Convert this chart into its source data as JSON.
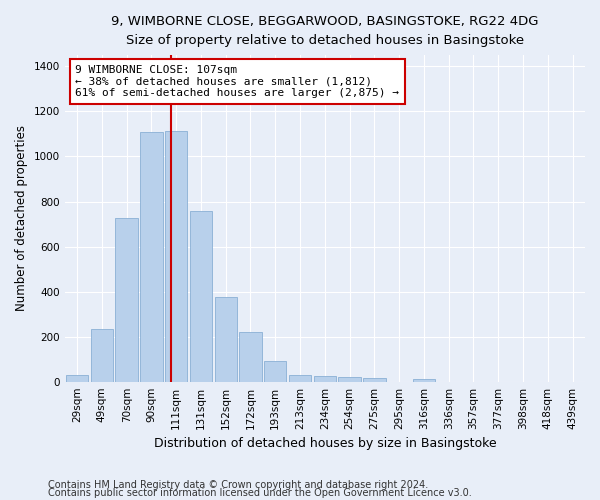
{
  "title_line1": "9, WIMBORNE CLOSE, BEGGARWOOD, BASINGSTOKE, RG22 4DG",
  "title_line2": "Size of property relative to detached houses in Basingstoke",
  "xlabel": "Distribution of detached houses by size in Basingstoke",
  "ylabel": "Number of detached properties",
  "bar_labels": [
    "29sqm",
    "49sqm",
    "70sqm",
    "90sqm",
    "111sqm",
    "131sqm",
    "152sqm",
    "172sqm",
    "193sqm",
    "213sqm",
    "234sqm",
    "254sqm",
    "275sqm",
    "295sqm",
    "316sqm",
    "336sqm",
    "357sqm",
    "377sqm",
    "398sqm",
    "418sqm",
    "439sqm"
  ],
  "bar_values": [
    30,
    235,
    725,
    1110,
    1115,
    760,
    375,
    220,
    90,
    30,
    25,
    22,
    16,
    0,
    13,
    0,
    0,
    0,
    0,
    0,
    0
  ],
  "bar_color": "#b8d0eb",
  "bar_edge_color": "#8ab0d5",
  "background_color": "#e8eef8",
  "grid_color": "#ffffff",
  "vline_x": 3.78,
  "annotation_text": "9 WIMBORNE CLOSE: 107sqm\n← 38% of detached houses are smaller (1,812)\n61% of semi-detached houses are larger (2,875) →",
  "annotation_box_color": "#ffffff",
  "annotation_box_edge": "#cc0000",
  "vline_color": "#cc0000",
  "ylim": [
    0,
    1450
  ],
  "yticks": [
    0,
    200,
    400,
    600,
    800,
    1000,
    1200,
    1400
  ],
  "footnote1": "Contains HM Land Registry data © Crown copyright and database right 2024.",
  "footnote2": "Contains public sector information licensed under the Open Government Licence v3.0.",
  "title_fontsize": 9.5,
  "subtitle_fontsize": 9,
  "axis_label_fontsize": 8.5,
  "tick_fontsize": 7.5,
  "annotation_fontsize": 8,
  "footnote_fontsize": 7
}
